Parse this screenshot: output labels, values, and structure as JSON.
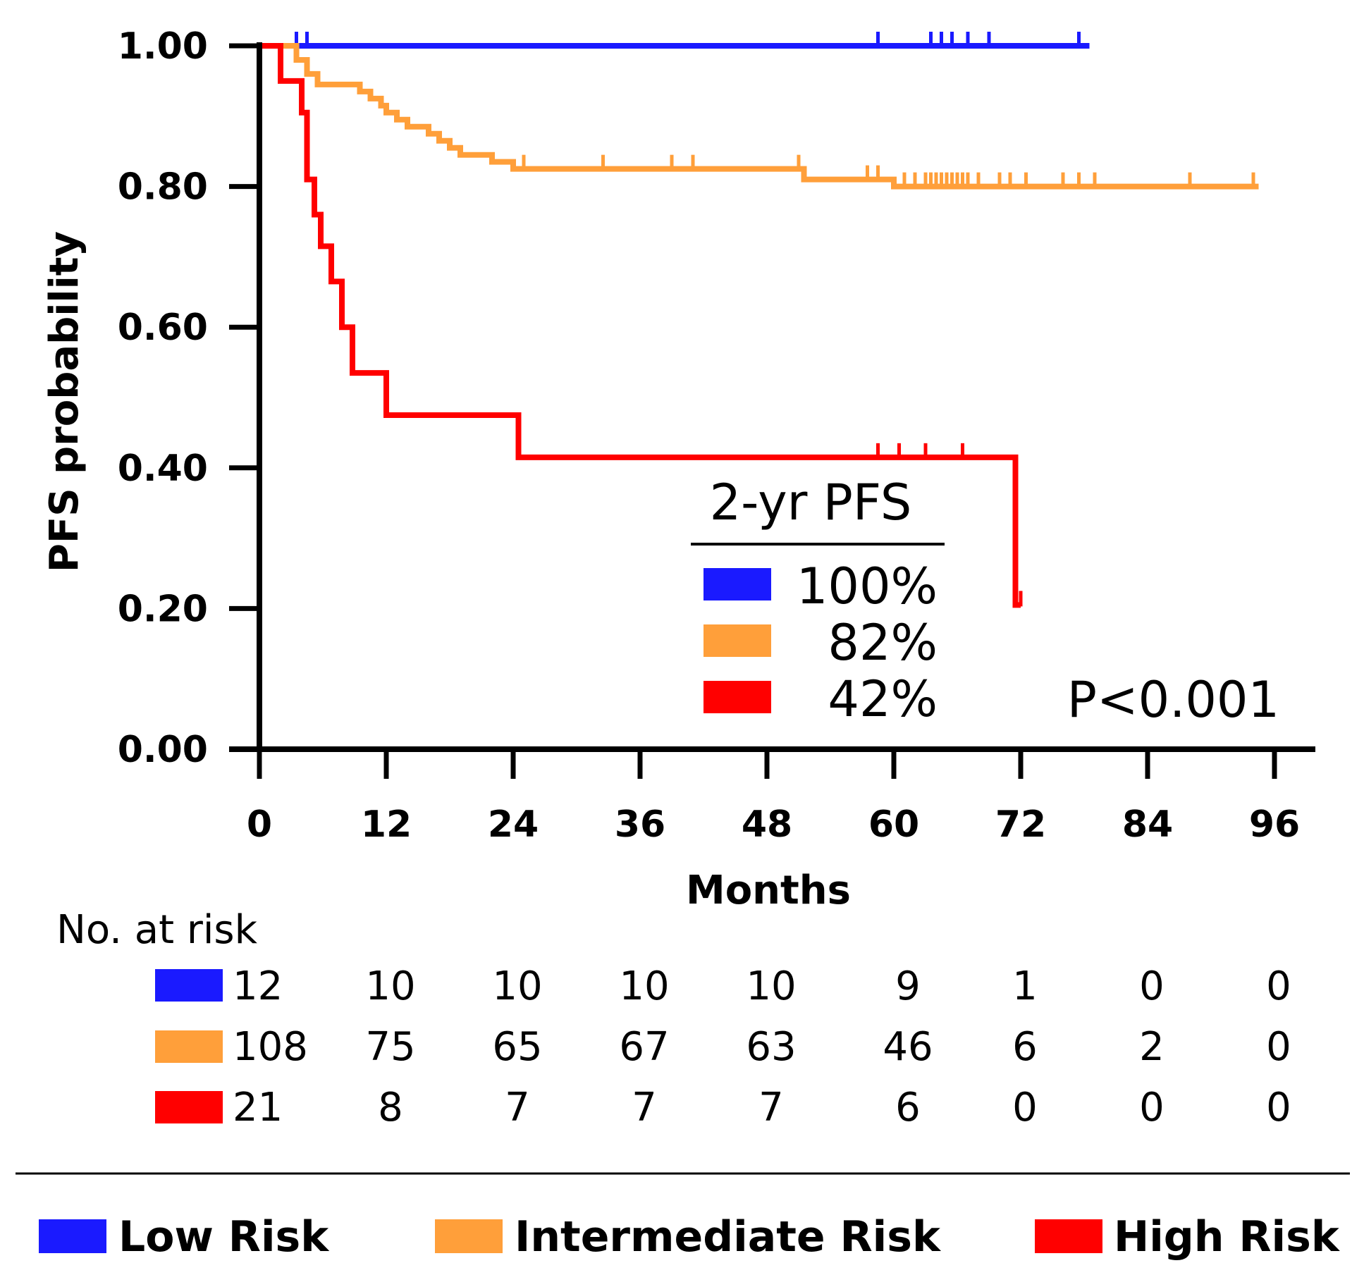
{
  "chart_data": {
    "type": "line",
    "subtype": "kaplan-meier",
    "ylabel": "PFS probability",
    "xlabel": "Months",
    "xlim": [
      0,
      96
    ],
    "ylim": [
      0,
      1
    ],
    "xticks": [
      "0",
      "12",
      "24",
      "36",
      "48",
      "60",
      "72",
      "84",
      "96"
    ],
    "yticks": [
      "0.00",
      "0.20",
      "0.40",
      "0.60",
      "0.80",
      "1.00"
    ],
    "series": [
      {
        "name": "Low Risk",
        "color": "#1a1aff",
        "two_year_pfs": "100%",
        "steps": [
          [
            0,
            1.0
          ],
          [
            78.5,
            1.0
          ]
        ],
        "censor_x": [
          3.5,
          4.5,
          58.5,
          63.5,
          64.5,
          65.5,
          67,
          69,
          77.5
        ]
      },
      {
        "name": "Intermediate Risk",
        "color": "#ff9f3a",
        "two_year_pfs": "82%",
        "steps": [
          [
            0,
            1.0
          ],
          [
            3.5,
            0.98
          ],
          [
            4.5,
            0.96
          ],
          [
            5.5,
            0.945
          ],
          [
            9.5,
            0.935
          ],
          [
            10.5,
            0.925
          ],
          [
            11.5,
            0.915
          ],
          [
            12,
            0.905
          ],
          [
            13,
            0.895
          ],
          [
            14,
            0.885
          ],
          [
            16,
            0.875
          ],
          [
            17,
            0.865
          ],
          [
            18,
            0.855
          ],
          [
            19,
            0.845
          ],
          [
            22,
            0.835
          ],
          [
            24,
            0.825
          ],
          [
            51.5,
            0.81
          ],
          [
            60,
            0.8
          ],
          [
            94.5,
            0.8
          ]
        ],
        "censor_x": [
          25,
          32.5,
          39,
          41,
          51,
          57.5,
          58.5,
          61,
          62,
          63,
          63.5,
          64,
          64.5,
          65,
          65.5,
          66,
          66.5,
          67,
          68,
          70,
          71,
          72.5,
          76,
          77.5,
          79,
          88,
          94
        ]
      },
      {
        "name": "High Risk",
        "color": "#ff0000",
        "two_year_pfs": "42%",
        "steps": [
          [
            0,
            1.0
          ],
          [
            2,
            0.95
          ],
          [
            4,
            0.905
          ],
          [
            4.5,
            0.81
          ],
          [
            5.2,
            0.76
          ],
          [
            5.8,
            0.715
          ],
          [
            6.8,
            0.665
          ],
          [
            7.8,
            0.6
          ],
          [
            8.8,
            0.535
          ],
          [
            12,
            0.475
          ],
          [
            24.5,
            0.415
          ],
          [
            71.5,
            0.205
          ],
          [
            72,
            0.205
          ]
        ],
        "censor_x": [
          58.5,
          60.5,
          63,
          66.5,
          72
        ]
      }
    ],
    "legend": {
      "title": "2-yr PFS",
      "placement": "lower-center"
    },
    "annotation": "P<0.001",
    "risk_table": {
      "title": "No. at risk",
      "time_points": [
        0,
        12,
        24,
        36,
        48,
        60,
        72,
        84,
        96
      ],
      "rows": [
        {
          "series": "Low Risk",
          "values": [
            "12",
            "10",
            "10",
            "10",
            "10",
            "9",
            "1",
            "0",
            "0"
          ]
        },
        {
          "series": "Intermediate Risk",
          "values": [
            "108",
            "75",
            "65",
            "67",
            "63",
            "46",
            "6",
            "2",
            "0"
          ]
        },
        {
          "series": "High Risk",
          "values": [
            "21",
            "8",
            "7",
            "7",
            "7",
            "6",
            "0",
            "0",
            "0"
          ]
        }
      ]
    },
    "bottom_legend": [
      "Low Risk",
      "Intermediate Risk",
      "High Risk"
    ]
  }
}
